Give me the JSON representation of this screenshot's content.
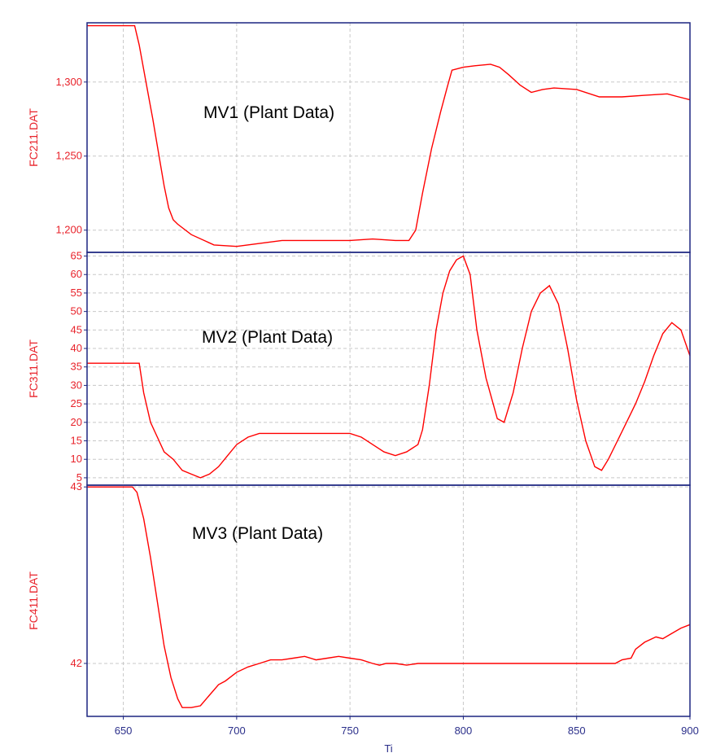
{
  "chart_data": [
    {
      "type": "line",
      "ylabel": "FC211.DAT",
      "annotation": "MV1 (Plant Data)",
      "xlim": [
        634,
        900
      ],
      "ylim": [
        1185,
        1340
      ],
      "yticks": [
        1200,
        1250,
        1300
      ],
      "ytick_labels": [
        "1,200",
        "1,250",
        "1,300"
      ],
      "grid": true,
      "series": [
        {
          "x": [
            634,
            655,
            657,
            660,
            663,
            666,
            668,
            670,
            672,
            674,
            680,
            690,
            700,
            710,
            720,
            730,
            740,
            750,
            760,
            770,
            776,
            779,
            782,
            786,
            790,
            793,
            795,
            800,
            805,
            812,
            816,
            820,
            825,
            830,
            835,
            840,
            850,
            860,
            870,
            880,
            890,
            895,
            900
          ],
          "y": [
            1338,
            1338,
            1325,
            1300,
            1275,
            1248,
            1230,
            1215,
            1207,
            1204,
            1197,
            1190,
            1189,
            1191,
            1193,
            1193,
            1193,
            1193,
            1194,
            1193,
            1193,
            1200,
            1225,
            1255,
            1280,
            1297,
            1308,
            1310,
            1311,
            1312,
            1310,
            1305,
            1298,
            1293,
            1295,
            1296,
            1295,
            1290,
            1290,
            1291,
            1292,
            1290,
            1288
          ]
        }
      ]
    },
    {
      "type": "line",
      "ylabel": "FC311.DAT",
      "annotation": "MV2 (Plant Data)",
      "xlim": [
        634,
        900
      ],
      "ylim": [
        3,
        66
      ],
      "yticks": [
        5,
        10,
        15,
        20,
        25,
        30,
        35,
        40,
        45,
        50,
        55,
        60,
        65
      ],
      "ytick_labels": [
        "5",
        "10",
        "15",
        "20",
        "25",
        "30",
        "35",
        "40",
        "45",
        "50",
        "55",
        "60",
        "65"
      ],
      "grid": true,
      "series": [
        {
          "x": [
            634,
            657,
            659,
            662,
            665,
            668,
            672,
            676,
            680,
            684,
            688,
            692,
            696,
            700,
            705,
            710,
            720,
            730,
            740,
            750,
            755,
            760,
            765,
            770,
            775,
            780,
            782,
            785,
            788,
            791,
            794,
            797,
            800,
            803,
            806,
            810,
            815,
            818,
            822,
            826,
            830,
            834,
            838,
            842,
            846,
            850,
            854,
            858,
            861,
            864,
            868,
            872,
            876,
            880,
            884,
            888,
            892,
            896,
            900
          ],
          "y": [
            36,
            36,
            28,
            20,
            16,
            12,
            10,
            7,
            6,
            5,
            6,
            8,
            11,
            14,
            16,
            17,
            17,
            17,
            17,
            17,
            16,
            14,
            12,
            11,
            12,
            14,
            18,
            30,
            45,
            55,
            61,
            64,
            65,
            60,
            45,
            32,
            21,
            20,
            28,
            40,
            50,
            55,
            57,
            52,
            40,
            26,
            15,
            8,
            7,
            10,
            15,
            20,
            25,
            31,
            38,
            44,
            47,
            45,
            38
          ]
        }
      ]
    },
    {
      "type": "line",
      "ylabel": "FC411.DAT",
      "annotation": "MV3 (Plant Data)",
      "xlabel": "Ti",
      "xlim": [
        634,
        900
      ],
      "ylim": [
        41.7,
        43.01
      ],
      "yticks": [
        42,
        43
      ],
      "ytick_labels": [
        "42",
        "43"
      ],
      "xticks": [
        650,
        700,
        750,
        800,
        850,
        900
      ],
      "xtick_labels": [
        "650",
        "700",
        "750",
        "800",
        "850",
        "900"
      ],
      "grid": true,
      "series": [
        {
          "x": [
            634,
            654,
            656,
            659,
            662,
            665,
            668,
            671,
            674,
            676,
            680,
            684,
            688,
            692,
            695,
            700,
            705,
            710,
            715,
            720,
            725,
            730,
            735,
            740,
            745,
            750,
            755,
            760,
            763,
            766,
            770,
            775,
            780,
            790,
            800,
            820,
            840,
            860,
            867,
            870,
            874,
            876,
            880,
            885,
            888,
            892,
            896,
            900
          ],
          "y": [
            43.0,
            43.0,
            42.97,
            42.82,
            42.6,
            42.35,
            42.1,
            41.92,
            41.8,
            41.75,
            41.75,
            41.76,
            41.82,
            41.88,
            41.9,
            41.95,
            41.98,
            42.0,
            42.02,
            42.02,
            42.03,
            42.04,
            42.02,
            42.03,
            42.04,
            42.03,
            42.02,
            42.0,
            41.99,
            42.0,
            42.0,
            41.99,
            42.0,
            42.0,
            42.0,
            42.0,
            42.0,
            42.0,
            42.0,
            42.02,
            42.03,
            42.08,
            42.12,
            42.15,
            42.14,
            42.17,
            42.2,
            42.22
          ]
        }
      ]
    }
  ],
  "colors": {
    "line": "#ff0000",
    "frame": "#1c2580",
    "grid": "#c8c8c8",
    "ytick_text": "#e8222a",
    "xtick_text": "#2b2f8a",
    "annotation": "#000000"
  }
}
